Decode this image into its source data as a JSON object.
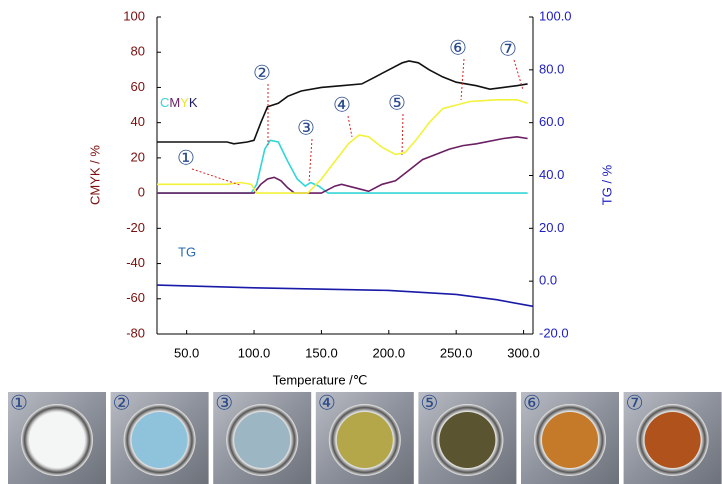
{
  "chart_data": {
    "type": "line",
    "x_label": "Temperature /℃",
    "y_label": "CMYK / %",
    "y2_label": "TG / %",
    "xlim": [
      28,
      307
    ],
    "ylim": [
      -80,
      100
    ],
    "y2lim": [
      -20,
      100
    ],
    "xticks": [
      {
        "value": 50,
        "label": "50.0"
      },
      {
        "value": 100,
        "label": "100.0"
      },
      {
        "value": 150,
        "label": "150.0"
      },
      {
        "value": 200,
        "label": "200.0"
      },
      {
        "value": 250,
        "label": "250.0"
      },
      {
        "value": 300,
        "label": "300.0"
      }
    ],
    "yticks": [
      -80,
      -60,
      -40,
      -20,
      0,
      20,
      40,
      60,
      80,
      100
    ],
    "y2ticks": [
      {
        "value": -20,
        "label": "-20.0"
      },
      {
        "value": 0,
        "label": "0.0"
      },
      {
        "value": 20,
        "label": "20.0"
      },
      {
        "value": 40,
        "label": "40.0"
      },
      {
        "value": 60,
        "label": "60.0"
      },
      {
        "value": 80,
        "label": "80.0"
      },
      {
        "value": 100,
        "label": "100.0"
      }
    ],
    "series": [
      {
        "name": "C",
        "color": "#33d6d6",
        "x": [
          28,
          98,
          102,
          108,
          112,
          118,
          125,
          132,
          138,
          142,
          148,
          155,
          303
        ],
        "values": [
          0,
          0,
          5,
          25,
          30,
          29,
          18,
          8,
          4,
          6,
          4,
          0,
          0
        ]
      },
      {
        "name": "M",
        "color": "#6b1f63",
        "x": [
          28,
          100,
          105,
          110,
          115,
          120,
          125,
          130,
          150,
          160,
          165,
          175,
          185,
          195,
          205,
          215,
          225,
          235,
          245,
          255,
          265,
          285,
          295,
          303
        ],
        "values": [
          0,
          0,
          5,
          8,
          9,
          7,
          3,
          0,
          0,
          4,
          5,
          3,
          1,
          5,
          7,
          13,
          19,
          22,
          25,
          27,
          28,
          31,
          32,
          31
        ]
      },
      {
        "name": "Y",
        "color": "#f2f23a",
        "x": [
          28,
          80,
          90,
          98,
          102,
          140,
          150,
          160,
          170,
          178,
          185,
          195,
          205,
          212,
          220,
          230,
          240,
          250,
          260,
          280,
          295,
          303
        ],
        "values": [
          5,
          5,
          6,
          5,
          0,
          0,
          8,
          18,
          28,
          33,
          32,
          26,
          22,
          23,
          30,
          40,
          48,
          50,
          52,
          53,
          53,
          51
        ]
      },
      {
        "name": "K",
        "color": "#111111",
        "x": [
          28,
          80,
          85,
          95,
          100,
          105,
          110,
          118,
          125,
          135,
          150,
          165,
          180,
          190,
          200,
          210,
          215,
          222,
          230,
          240,
          250,
          265,
          275,
          285,
          295,
          303
        ],
        "values": [
          29,
          29,
          28,
          29,
          30,
          40,
          49,
          51,
          55,
          58,
          60,
          61,
          62,
          66,
          70,
          74,
          75,
          74,
          70,
          66,
          63,
          61,
          59,
          60,
          61,
          62
        ]
      },
      {
        "name": "TG",
        "color": "#1a1aa8",
        "axis": "y2",
        "x": [
          28,
          100,
          200,
          250,
          280,
          307
        ],
        "values": [
          -1.5,
          -2.5,
          -3.5,
          -5,
          -7,
          -9.5
        ]
      }
    ],
    "annotations": [
      "①",
      "②",
      "③",
      "④",
      "⑤",
      "⑥",
      "⑦"
    ],
    "sample_labels": [
      "①",
      "②",
      "③",
      "④",
      "⑤",
      "⑥",
      "⑦"
    ]
  }
}
